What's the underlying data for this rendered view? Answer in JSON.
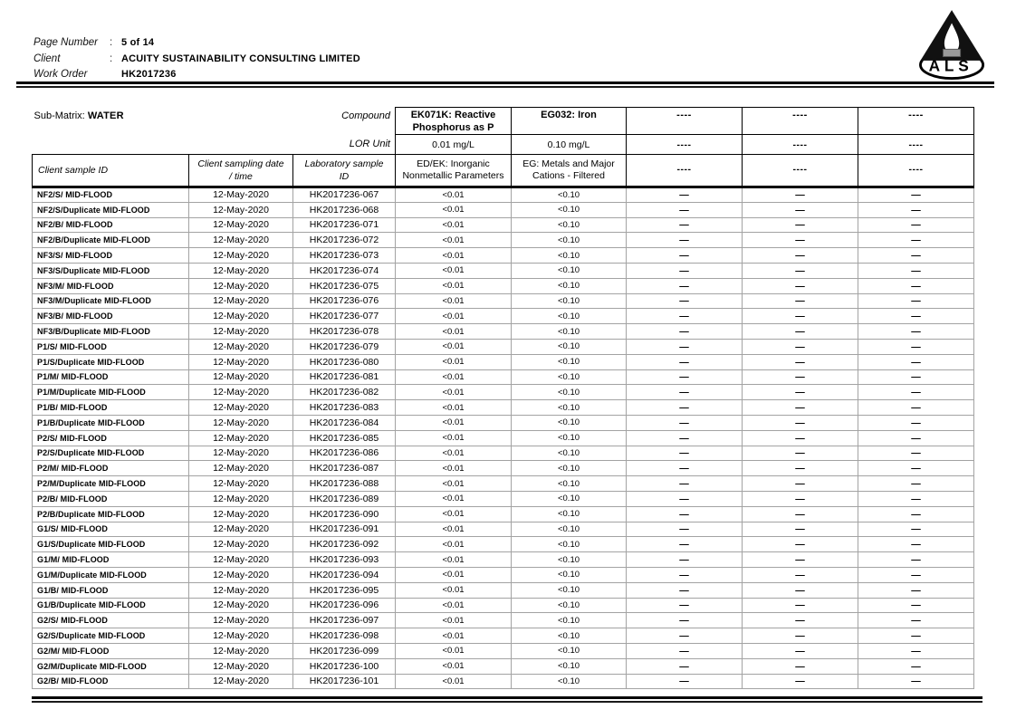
{
  "page_header": {
    "rows": [
      {
        "label": "Page Number",
        "sep": ":",
        "value": "5 of 14"
      },
      {
        "label": "Client",
        "sep": ":",
        "value": "ACUITY SUSTAINABILITY CONSULTING LIMITED"
      },
      {
        "label": "Work Order",
        "sep": "",
        "value": "HK2017236"
      }
    ],
    "logo_text": "ALS"
  },
  "table": {
    "sub_matrix_label": "Sub-Matrix:",
    "sub_matrix_value": "WATER",
    "compound_label": "Compound",
    "lor_unit_label": "LOR Unit",
    "left_headers": [
      {
        "line1": "Client sample ID",
        "line2": ""
      },
      {
        "line1": "Client sampling date",
        "line2": "/ time"
      },
      {
        "line1": "Laboratory sample",
        "line2": "ID"
      }
    ],
    "compound_columns": [
      {
        "name": "EK071K: Reactive Phosphorus as P",
        "unit": "0.01 mg/L",
        "method": "ED/EK: Inorganic Nonmetallic Parameters"
      },
      {
        "name": "EG032: Iron",
        "unit": "0.10 mg/L",
        "method": "EG: Metals and Major Cations - Filtered"
      },
      {
        "name": "----",
        "unit": "----",
        "method": "----"
      },
      {
        "name": "----",
        "unit": "----",
        "method": "----"
      },
      {
        "name": "----",
        "unit": "----",
        "method": "----"
      }
    ],
    "rows": [
      {
        "id": "NF2/S/ MID-FLOOD",
        "date": "12-May-2020",
        "lab": "HK2017236-067",
        "values": [
          "<0.01",
          "<0.10",
          "—",
          "—",
          "—"
        ]
      },
      {
        "id": "NF2/S/Duplicate MID-FLOOD",
        "date": "12-May-2020",
        "lab": "HK2017236-068",
        "values": [
          "<0.01",
          "<0.10",
          "—",
          "—",
          "—"
        ]
      },
      {
        "id": "NF2/B/ MID-FLOOD",
        "date": "12-May-2020",
        "lab": "HK2017236-071",
        "values": [
          "<0.01",
          "<0.10",
          "—",
          "—",
          "—"
        ]
      },
      {
        "id": "NF2/B/Duplicate MID-FLOOD",
        "date": "12-May-2020",
        "lab": "HK2017236-072",
        "values": [
          "<0.01",
          "<0.10",
          "—",
          "—",
          "—"
        ]
      },
      {
        "id": "NF3/S/ MID-FLOOD",
        "date": "12-May-2020",
        "lab": "HK2017236-073",
        "values": [
          "<0.01",
          "<0.10",
          "—",
          "—",
          "—"
        ]
      },
      {
        "id": "NF3/S/Duplicate MID-FLOOD",
        "date": "12-May-2020",
        "lab": "HK2017236-074",
        "values": [
          "<0.01",
          "<0.10",
          "—",
          "—",
          "—"
        ]
      },
      {
        "id": "NF3/M/ MID-FLOOD",
        "date": "12-May-2020",
        "lab": "HK2017236-075",
        "values": [
          "<0.01",
          "<0.10",
          "—",
          "—",
          "—"
        ]
      },
      {
        "id": "NF3/M/Duplicate MID-FLOOD",
        "date": "12-May-2020",
        "lab": "HK2017236-076",
        "values": [
          "<0.01",
          "<0.10",
          "—",
          "—",
          "—"
        ]
      },
      {
        "id": "NF3/B/ MID-FLOOD",
        "date": "12-May-2020",
        "lab": "HK2017236-077",
        "values": [
          "<0.01",
          "<0.10",
          "—",
          "—",
          "—"
        ]
      },
      {
        "id": "NF3/B/Duplicate MID-FLOOD",
        "date": "12-May-2020",
        "lab": "HK2017236-078",
        "values": [
          "<0.01",
          "<0.10",
          "—",
          "—",
          "—"
        ]
      },
      {
        "id": "P1/S/ MID-FLOOD",
        "date": "12-May-2020",
        "lab": "HK2017236-079",
        "values": [
          "<0.01",
          "<0.10",
          "—",
          "—",
          "—"
        ]
      },
      {
        "id": "P1/S/Duplicate MID-FLOOD",
        "date": "12-May-2020",
        "lab": "HK2017236-080",
        "values": [
          "<0.01",
          "<0.10",
          "—",
          "—",
          "—"
        ]
      },
      {
        "id": "P1/M/ MID-FLOOD",
        "date": "12-May-2020",
        "lab": "HK2017236-081",
        "values": [
          "<0.01",
          "<0.10",
          "—",
          "—",
          "—"
        ]
      },
      {
        "id": "P1/M/Duplicate MID-FLOOD",
        "date": "12-May-2020",
        "lab": "HK2017236-082",
        "values": [
          "<0.01",
          "<0.10",
          "—",
          "—",
          "—"
        ]
      },
      {
        "id": "P1/B/ MID-FLOOD",
        "date": "12-May-2020",
        "lab": "HK2017236-083",
        "values": [
          "<0.01",
          "<0.10",
          "—",
          "—",
          "—"
        ]
      },
      {
        "id": "P1/B/Duplicate MID-FLOOD",
        "date": "12-May-2020",
        "lab": "HK2017236-084",
        "values": [
          "<0.01",
          "<0.10",
          "—",
          "—",
          "—"
        ]
      },
      {
        "id": "P2/S/ MID-FLOOD",
        "date": "12-May-2020",
        "lab": "HK2017236-085",
        "values": [
          "<0.01",
          "<0.10",
          "—",
          "—",
          "—"
        ]
      },
      {
        "id": "P2/S/Duplicate MID-FLOOD",
        "date": "12-May-2020",
        "lab": "HK2017236-086",
        "values": [
          "<0.01",
          "<0.10",
          "—",
          "—",
          "—"
        ]
      },
      {
        "id": "P2/M/ MID-FLOOD",
        "date": "12-May-2020",
        "lab": "HK2017236-087",
        "values": [
          "<0.01",
          "<0.10",
          "—",
          "—",
          "—"
        ]
      },
      {
        "id": "P2/M/Duplicate MID-FLOOD",
        "date": "12-May-2020",
        "lab": "HK2017236-088",
        "values": [
          "<0.01",
          "<0.10",
          "—",
          "—",
          "—"
        ]
      },
      {
        "id": "P2/B/ MID-FLOOD",
        "date": "12-May-2020",
        "lab": "HK2017236-089",
        "values": [
          "<0.01",
          "<0.10",
          "—",
          "—",
          "—"
        ]
      },
      {
        "id": "P2/B/Duplicate MID-FLOOD",
        "date": "12-May-2020",
        "lab": "HK2017236-090",
        "values": [
          "<0.01",
          "<0.10",
          "—",
          "—",
          "—"
        ]
      },
      {
        "id": "G1/S/ MID-FLOOD",
        "date": "12-May-2020",
        "lab": "HK2017236-091",
        "values": [
          "<0.01",
          "<0.10",
          "—",
          "—",
          "—"
        ]
      },
      {
        "id": "G1/S/Duplicate MID-FLOOD",
        "date": "12-May-2020",
        "lab": "HK2017236-092",
        "values": [
          "<0.01",
          "<0.10",
          "—",
          "—",
          "—"
        ]
      },
      {
        "id": "G1/M/ MID-FLOOD",
        "date": "12-May-2020",
        "lab": "HK2017236-093",
        "values": [
          "<0.01",
          "<0.10",
          "—",
          "—",
          "—"
        ]
      },
      {
        "id": "G1/M/Duplicate MID-FLOOD",
        "date": "12-May-2020",
        "lab": "HK2017236-094",
        "values": [
          "<0.01",
          "<0.10",
          "—",
          "—",
          "—"
        ]
      },
      {
        "id": "G1/B/ MID-FLOOD",
        "date": "12-May-2020",
        "lab": "HK2017236-095",
        "values": [
          "<0.01",
          "<0.10",
          "—",
          "—",
          "—"
        ]
      },
      {
        "id": "G1/B/Duplicate MID-FLOOD",
        "date": "12-May-2020",
        "lab": "HK2017236-096",
        "values": [
          "<0.01",
          "<0.10",
          "—",
          "—",
          "—"
        ]
      },
      {
        "id": "G2/S/ MID-FLOOD",
        "date": "12-May-2020",
        "lab": "HK2017236-097",
        "values": [
          "<0.01",
          "<0.10",
          "—",
          "—",
          "—"
        ]
      },
      {
        "id": "G2/S/Duplicate MID-FLOOD",
        "date": "12-May-2020",
        "lab": "HK2017236-098",
        "values": [
          "<0.01",
          "<0.10",
          "—",
          "—",
          "—"
        ]
      },
      {
        "id": "G2/M/ MID-FLOOD",
        "date": "12-May-2020",
        "lab": "HK2017236-099",
        "values": [
          "<0.01",
          "<0.10",
          "—",
          "—",
          "—"
        ]
      },
      {
        "id": "G2/M/Duplicate MID-FLOOD",
        "date": "12-May-2020",
        "lab": "HK2017236-100",
        "values": [
          "<0.01",
          "<0.10",
          "—",
          "—",
          "—"
        ]
      },
      {
        "id": "G2/B/ MID-FLOOD",
        "date": "12-May-2020",
        "lab": "HK2017236-101",
        "values": [
          "<0.01",
          "<0.10",
          "—",
          "—",
          "—"
        ]
      }
    ]
  }
}
